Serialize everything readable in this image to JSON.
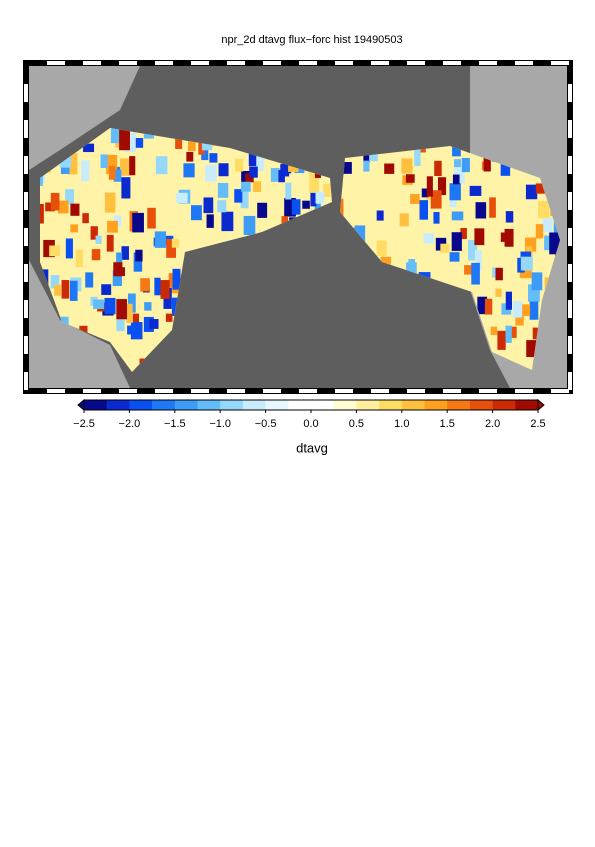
{
  "title": "npr_2d dtavg flux−forc hist 19490503",
  "colorbar": {
    "label": "dtavg",
    "lim": [
      -2.5,
      2.5
    ],
    "ticks": [
      {
        "value": -2.5,
        "label": "−2.5"
      },
      {
        "value": -2.0,
        "label": "−2.0"
      },
      {
        "value": -1.5,
        "label": "−1.5"
      },
      {
        "value": -1.0,
        "label": "−1.0"
      },
      {
        "value": -0.5,
        "label": "−0.5"
      },
      {
        "value": 0,
        "label": "0.0"
      },
      0.5,
      {
        "value": 1,
        "label": "1.0"
      },
      1.5,
      {
        "value": 2,
        "label": "2.0"
      },
      2.5
    ],
    "colors": [
      "#08088c",
      "#0a2ad0",
      "#0a50f0",
      "#1e78f5",
      "#3c9cf8",
      "#64bcf8",
      "#96d8fa",
      "#c8ecfc",
      "#e8f6fd",
      "#ffffff",
      "#ffffff",
      "#fffbd2",
      "#fff0a0",
      "#ffdc64",
      "#ffc040",
      "#ffa01e",
      "#f57814",
      "#e6500a",
      "#cc2a05",
      "#a00a00"
    ]
  }
}
